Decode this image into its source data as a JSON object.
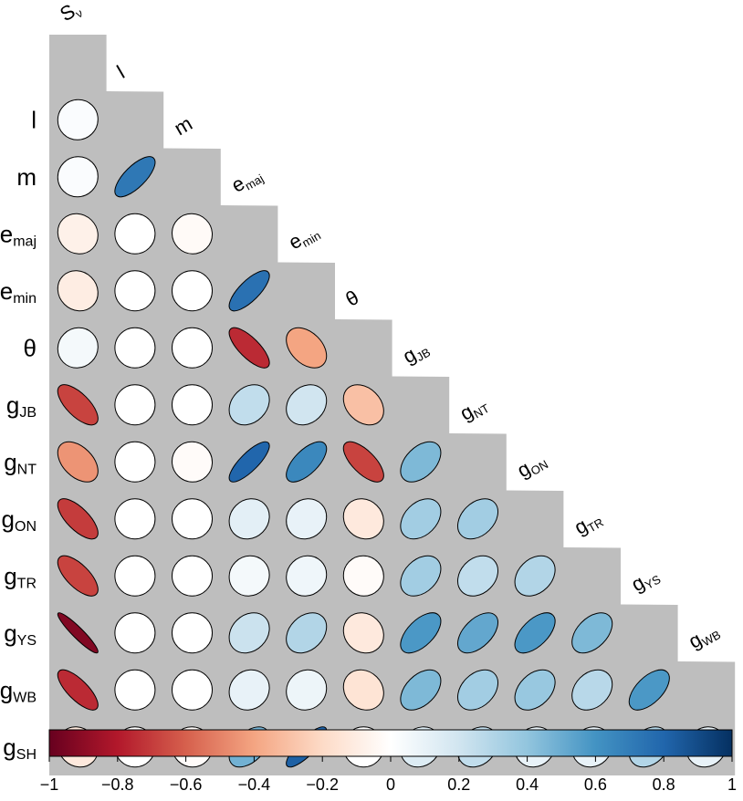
{
  "chart_data": {
    "type": "heatmap",
    "subtype": "correlation-ellipse-lower-triangle",
    "variables": [
      {
        "base": "S",
        "sub": "ν"
      },
      {
        "base": "l",
        "sub": ""
      },
      {
        "base": "m",
        "sub": ""
      },
      {
        "base": "e",
        "sub": "maj"
      },
      {
        "base": "e",
        "sub": "min"
      },
      {
        "base": "θ",
        "sub": ""
      },
      {
        "base": "g",
        "sub": "JB"
      },
      {
        "base": "g",
        "sub": "NT"
      },
      {
        "base": "g",
        "sub": "ON"
      },
      {
        "base": "g",
        "sub": "TR"
      },
      {
        "base": "g",
        "sub": "YS"
      },
      {
        "base": "g",
        "sub": "WB"
      },
      {
        "base": "g",
        "sub": "SH"
      }
    ],
    "correlations": [
      [
        0.02
      ],
      [
        0.02,
        0.72
      ],
      [
        -0.08,
        0.0,
        -0.03
      ],
      [
        -0.1,
        0.0,
        0.0,
        0.75
      ],
      [
        0.05,
        0.0,
        0.0,
        -0.75,
        -0.4
      ],
      [
        -0.68,
        0.0,
        0.0,
        0.25,
        0.2,
        -0.3
      ],
      [
        -0.45,
        0.0,
        -0.02,
        0.8,
        0.65,
        -0.68,
        0.45
      ],
      [
        -0.7,
        0.0,
        0.0,
        0.12,
        0.1,
        -0.12,
        0.35,
        0.35
      ],
      [
        -0.68,
        0.0,
        0.0,
        0.05,
        0.07,
        -0.02,
        0.35,
        0.25,
        0.3
      ],
      [
        -0.93,
        0.0,
        0.0,
        0.22,
        0.3,
        -0.12,
        0.58,
        0.52,
        0.58,
        0.45
      ],
      [
        -0.75,
        0.0,
        0.0,
        0.1,
        0.08,
        -0.15,
        0.45,
        0.35,
        0.38,
        0.28,
        0.58
      ],
      [
        -0.12,
        0.0,
        -0.02,
        0.48,
        0.82,
        0.0,
        0.15,
        0.25,
        0.1,
        0.1,
        0.3,
        0.1
      ]
    ],
    "colorbar": {
      "min": -1,
      "max": 1,
      "ticks": [
        "−1",
        "−0.8",
        "−0.6",
        "−0.4",
        "−0.2",
        "0",
        "0.2",
        "0.4",
        "0.6",
        "0.8",
        "1"
      ],
      "colors": [
        "#67001F",
        "#B2182B",
        "#D6604D",
        "#F4A582",
        "#FDDBC7",
        "#FFFFFF",
        "#D1E5F0",
        "#92C5DE",
        "#4393C3",
        "#2166AC",
        "#053061"
      ]
    },
    "background_color": "#BEBEBE"
  }
}
